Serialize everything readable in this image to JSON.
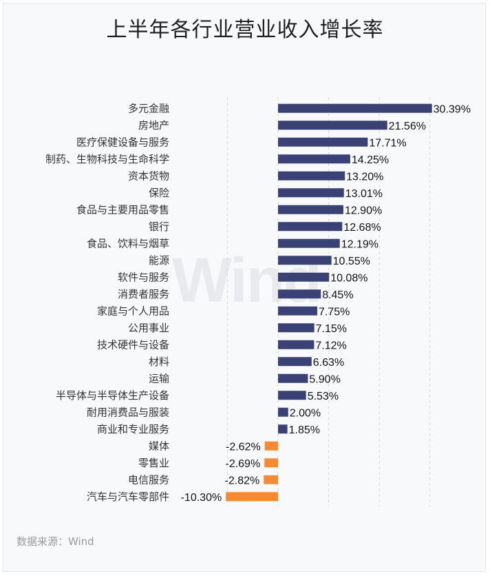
{
  "title": "上半年各行业营业收入增长率",
  "source": "数据来源：Wind",
  "watermark": "Wind",
  "colors": {
    "positive": "#3a4175",
    "negative": "#f68a31",
    "grid": "#d5d7dc"
  },
  "chart_data": {
    "type": "bar",
    "orientation": "horizontal",
    "title": "上半年各行业营业收入增长率",
    "xlim": [
      -10.3,
      30.39
    ],
    "grid": true,
    "categories": [
      "多元金融",
      "房地产",
      "医疗保健设备与服务",
      "制药、生物科技与生命科学",
      "资本货物",
      "保险",
      "食品与主要用品零售",
      "银行",
      "食品、饮料与烟草",
      "能源",
      "软件与服务",
      "消费者服务",
      "家庭与个人用品",
      "公用事业",
      "技术硬件与设备",
      "材料",
      "运输",
      "半导体与半导体生产设备",
      "耐用消费品与服装",
      "商业和专业服务",
      "媒体",
      "零售业",
      "电信服务",
      "汽车与汽车零部件"
    ],
    "values": [
      30.39,
      21.56,
      17.71,
      14.25,
      13.2,
      13.01,
      12.9,
      12.68,
      12.19,
      10.55,
      10.08,
      8.45,
      7.75,
      7.15,
      7.12,
      6.63,
      5.9,
      5.53,
      2.0,
      1.85,
      -2.62,
      -2.69,
      -2.82,
      -10.3
    ],
    "value_labels": [
      "30.39%",
      "21.56%",
      "17.71%",
      "14.25%",
      "13.20%",
      "13.01%",
      "12.90%",
      "12.68%",
      "12.19%",
      "10.55%",
      "10.08%",
      "8.45%",
      "7.75%",
      "7.15%",
      "7.12%",
      "6.63%",
      "5.90%",
      "5.53%",
      "2.00%",
      "1.85%",
      "-2.62%",
      "-2.69%",
      "-2.82%",
      "-10.30%"
    ]
  }
}
